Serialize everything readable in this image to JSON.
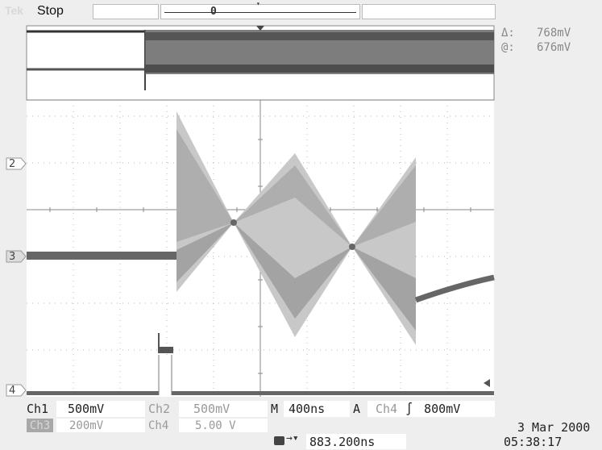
{
  "header": {
    "brand": "Tek",
    "run_state": "Stop",
    "record_marker": "0"
  },
  "cursor_readout": {
    "delta_symbol": "Δ:",
    "delta_value": "768mV",
    "at_symbol": "@:",
    "at_value": "676mV"
  },
  "channel_markers": {
    "ch2": "2",
    "ch3": "3",
    "ch4": "4"
  },
  "status": {
    "ch1_label": "Ch1",
    "ch1_value": "500mV",
    "ch2_label": "Ch2",
    "ch2_value": "500mV",
    "timebase_label": "M",
    "timebase_value": "400ns",
    "trigger_label": "A",
    "trigger_source": "Ch4",
    "trigger_slope": "∫",
    "trigger_level": "800mV",
    "ch3_label": "Ch3",
    "ch3_value": "200mV",
    "ch4_label": "Ch4",
    "ch4_value": "5.00 V",
    "trigger_position_value": "883.200ns"
  },
  "datetime": {
    "date": "3 Mar 2000",
    "time": "05:38:17"
  },
  "colors": {
    "screen_bg": "#ffffff",
    "grid": "#9a9a9a",
    "trace": "#555555",
    "chrome": "#eeeeee"
  }
}
